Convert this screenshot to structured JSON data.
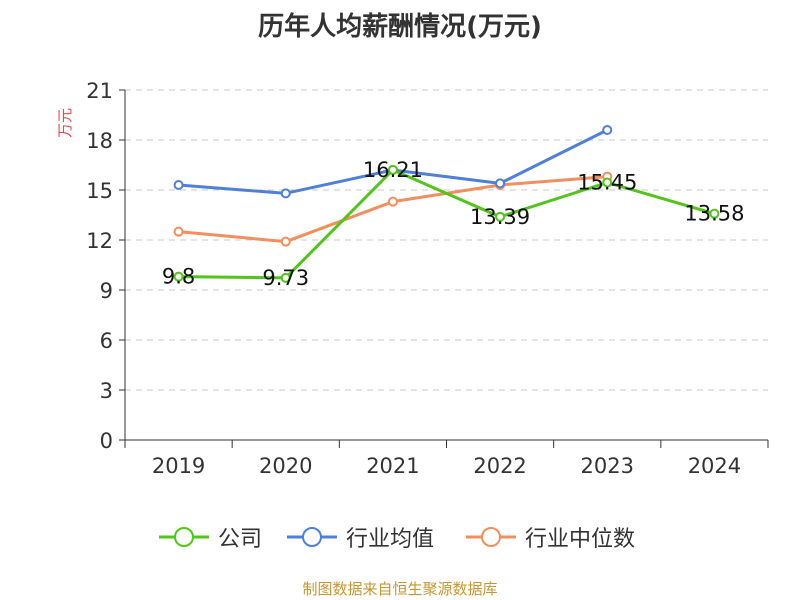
{
  "chart_data": {
    "type": "line",
    "title": "历年人均薪酬情况(万元)",
    "ylabel": "万元",
    "xlabel": "",
    "categories": [
      "2019",
      "2020",
      "2021",
      "2022",
      "2023",
      "2024"
    ],
    "ylim": [
      0,
      21
    ],
    "yticks": [
      0,
      3,
      6,
      9,
      12,
      15,
      18,
      21
    ],
    "grid": true,
    "legend_position": "bottom",
    "series": [
      {
        "name": "公司",
        "color": "#52c41a",
        "values": [
          9.8,
          9.73,
          16.21,
          13.39,
          15.45,
          13.58
        ],
        "labels": [
          "9.8",
          "9.73",
          "16.21",
          "13.39",
          "15.45",
          "13.58"
        ]
      },
      {
        "name": "行业均值",
        "color": "#4e7fd9",
        "values": [
          15.3,
          14.8,
          16.2,
          15.4,
          18.6,
          null
        ],
        "labels": []
      },
      {
        "name": "行业中位数",
        "color": "#f28f5c",
        "values": [
          12.5,
          11.9,
          14.3,
          15.3,
          15.8,
          null
        ],
        "labels": []
      }
    ]
  },
  "source_text": "制图数据来自恒生聚源数据库"
}
